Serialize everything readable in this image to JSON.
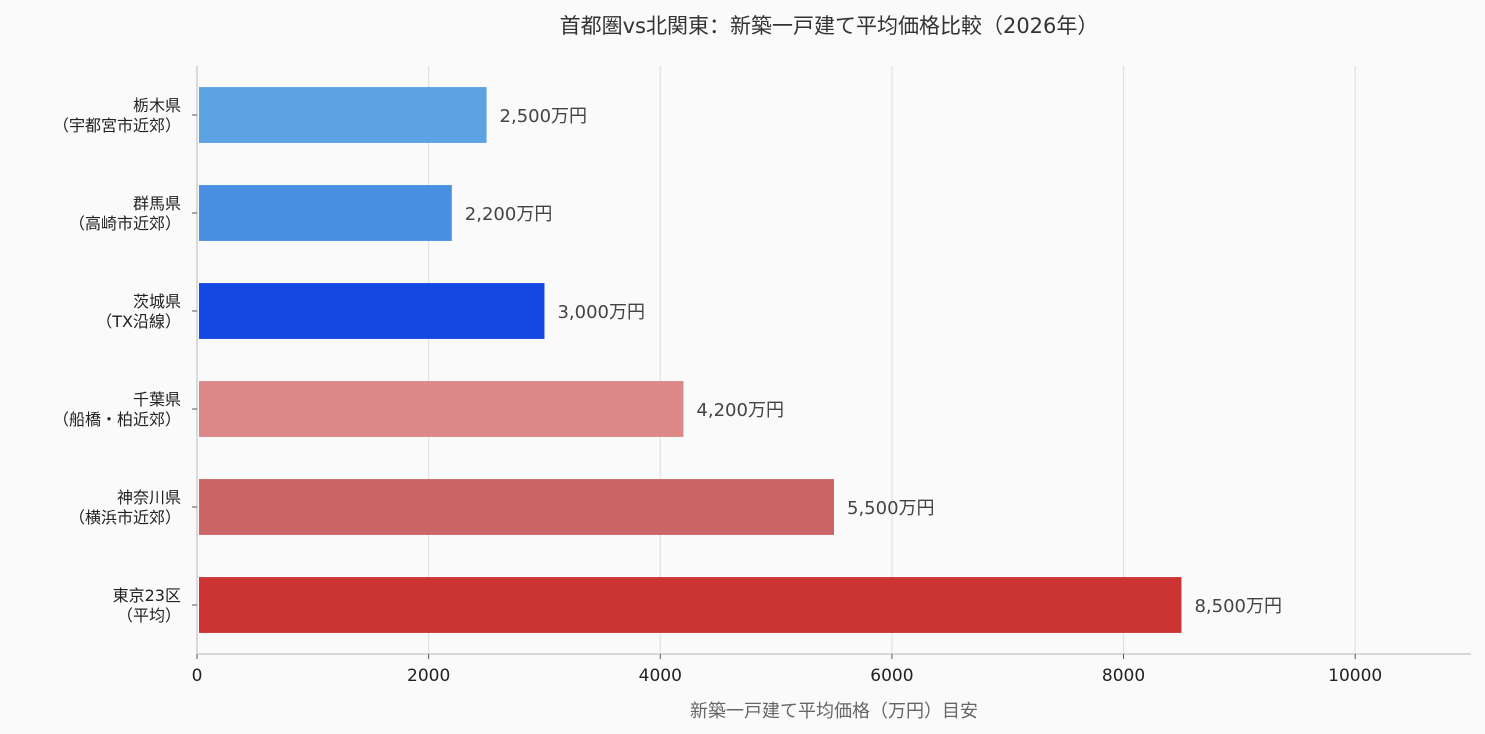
{
  "chart_data": {
    "type": "bar",
    "orientation": "horizontal",
    "title": "首都圏vs北関東：新築一戸建て平均価格比較（2026年）",
    "xlabel": "新築一戸建て平均価格（万円）目安",
    "ylabel": "",
    "xlim": [
      0,
      11000
    ],
    "xticks": [
      0,
      2000,
      4000,
      6000,
      8000,
      10000
    ],
    "grid": "vertical",
    "legend": "none",
    "categories": [
      [
        "栃木県",
        "（宇都宮市近郊）"
      ],
      [
        "群馬県",
        "（高崎市近郊）"
      ],
      [
        "茨城県",
        "（TX沿線）"
      ],
      [
        "千葉県",
        "（船橋・柏近郊）"
      ],
      [
        "神奈川県",
        "（横浜市近郊）"
      ],
      [
        "東京23区",
        "（平均）"
      ]
    ],
    "values": [
      2500,
      2200,
      3000,
      4200,
      5500,
      8500
    ],
    "data_labels": [
      "2,500万円",
      "2,200万円",
      "3,000万円",
      "4,200万円",
      "5,500万円",
      "8,500万円"
    ],
    "colors": [
      "#5ba3e3",
      "#4a90e2",
      "#1448e3",
      "#dd8888",
      "#cc6666",
      "#cc3333"
    ]
  }
}
